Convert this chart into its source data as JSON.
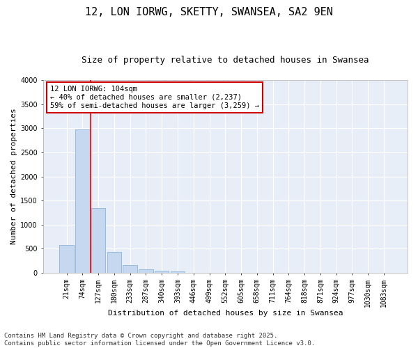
{
  "title": "12, LON IORWG, SKETTY, SWANSEA, SA2 9EN",
  "subtitle": "Size of property relative to detached houses in Swansea",
  "xlabel": "Distribution of detached houses by size in Swansea",
  "ylabel": "Number of detached properties",
  "categories": [
    "21sqm",
    "74sqm",
    "127sqm",
    "180sqm",
    "233sqm",
    "287sqm",
    "340sqm",
    "393sqm",
    "446sqm",
    "499sqm",
    "552sqm",
    "605sqm",
    "658sqm",
    "711sqm",
    "764sqm",
    "818sqm",
    "871sqm",
    "924sqm",
    "977sqm",
    "1030sqm",
    "1083sqm"
  ],
  "values": [
    580,
    2970,
    1340,
    430,
    155,
    70,
    40,
    30,
    0,
    0,
    0,
    0,
    0,
    0,
    0,
    0,
    0,
    0,
    0,
    0,
    0
  ],
  "bar_color": "#c5d8f0",
  "bar_edge_color": "#7baad4",
  "vline_x": 1.5,
  "vline_color": "red",
  "ylim": [
    0,
    4000
  ],
  "yticks": [
    0,
    500,
    1000,
    1500,
    2000,
    2500,
    3000,
    3500,
    4000
  ],
  "annotation_text": "12 LON IORWG: 104sqm\n← 40% of detached houses are smaller (2,237)\n59% of semi-detached houses are larger (3,259) →",
  "annotation_box_facecolor": "#ffffff",
  "annotation_box_edge": "#cc0000",
  "footnote": "Contains HM Land Registry data © Crown copyright and database right 2025.\nContains public sector information licensed under the Open Government Licence v3.0.",
  "bg_color": "#ffffff",
  "plot_bg_color": "#e8eef8",
  "grid_color": "#ffffff",
  "title_fontsize": 11,
  "subtitle_fontsize": 9,
  "axis_label_fontsize": 8,
  "tick_fontsize": 7,
  "footnote_fontsize": 6.5,
  "annotation_fontsize": 7.5
}
